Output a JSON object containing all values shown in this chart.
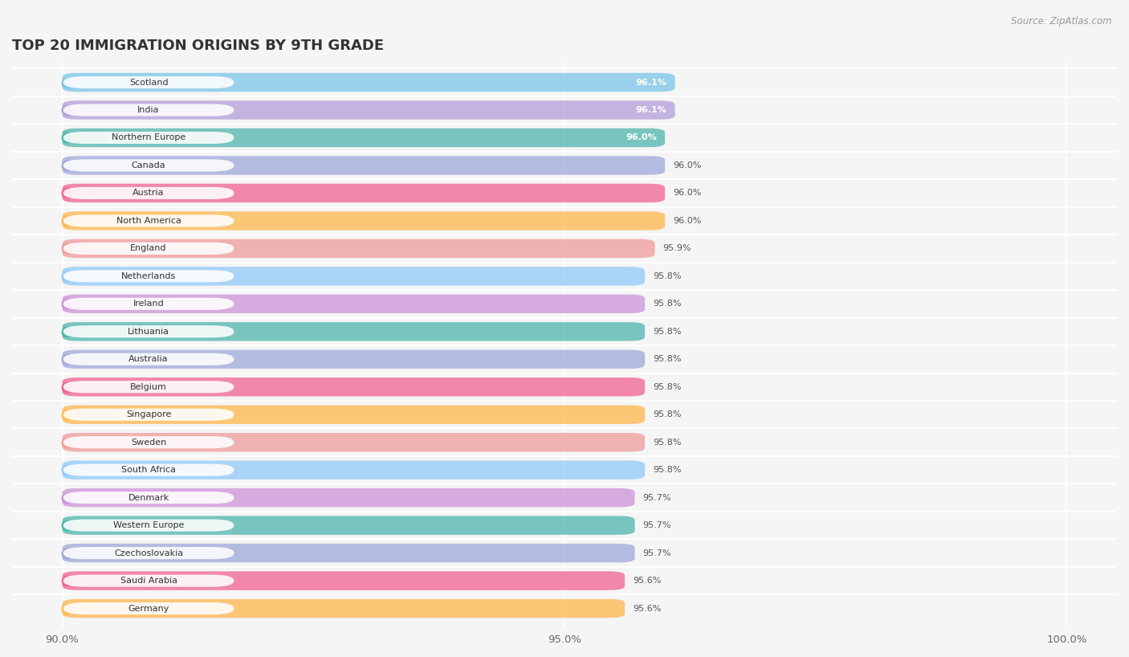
{
  "title": "TOP 20 IMMIGRATION ORIGINS BY 9TH GRADE",
  "source": "Source: ZipAtlas.com",
  "categories": [
    "Scotland",
    "India",
    "Northern Europe",
    "Canada",
    "Austria",
    "North America",
    "England",
    "Netherlands",
    "Ireland",
    "Lithuania",
    "Australia",
    "Belgium",
    "Singapore",
    "Sweden",
    "South Africa",
    "Denmark",
    "Western Europe",
    "Czechoslovakia",
    "Saudi Arabia",
    "Germany"
  ],
  "values": [
    96.1,
    96.1,
    96.0,
    96.0,
    96.0,
    96.0,
    95.9,
    95.8,
    95.8,
    95.8,
    95.8,
    95.8,
    95.8,
    95.8,
    95.8,
    95.7,
    95.7,
    95.7,
    95.6,
    95.6
  ],
  "bar_colors": [
    "#7bc4e8",
    "#b39ddb",
    "#4db6ac",
    "#9fa8da",
    "#f06292",
    "#ffb74d",
    "#ef9a9a",
    "#90caf9",
    "#ce93d8",
    "#4db6ac",
    "#9fa8da",
    "#f06292",
    "#ffb74d",
    "#ef9a9a",
    "#90caf9",
    "#ce93d8",
    "#4db6ac",
    "#9fa8da",
    "#f06292",
    "#ffb74d"
  ],
  "xlim_min": 89.5,
  "xlim_max": 100.5,
  "xmin": 90.0,
  "xticks": [
    90.0,
    95.0,
    100.0
  ],
  "xticklabels": [
    "90.0%",
    "95.0%",
    "100.0%"
  ],
  "label_inside_bar": [
    true,
    true,
    true,
    false,
    false,
    false,
    false,
    false,
    false,
    false,
    false,
    false,
    false,
    false,
    false,
    false,
    false,
    false,
    false,
    false
  ],
  "background_color": "#f5f5f5",
  "bar_alpha": 0.75
}
